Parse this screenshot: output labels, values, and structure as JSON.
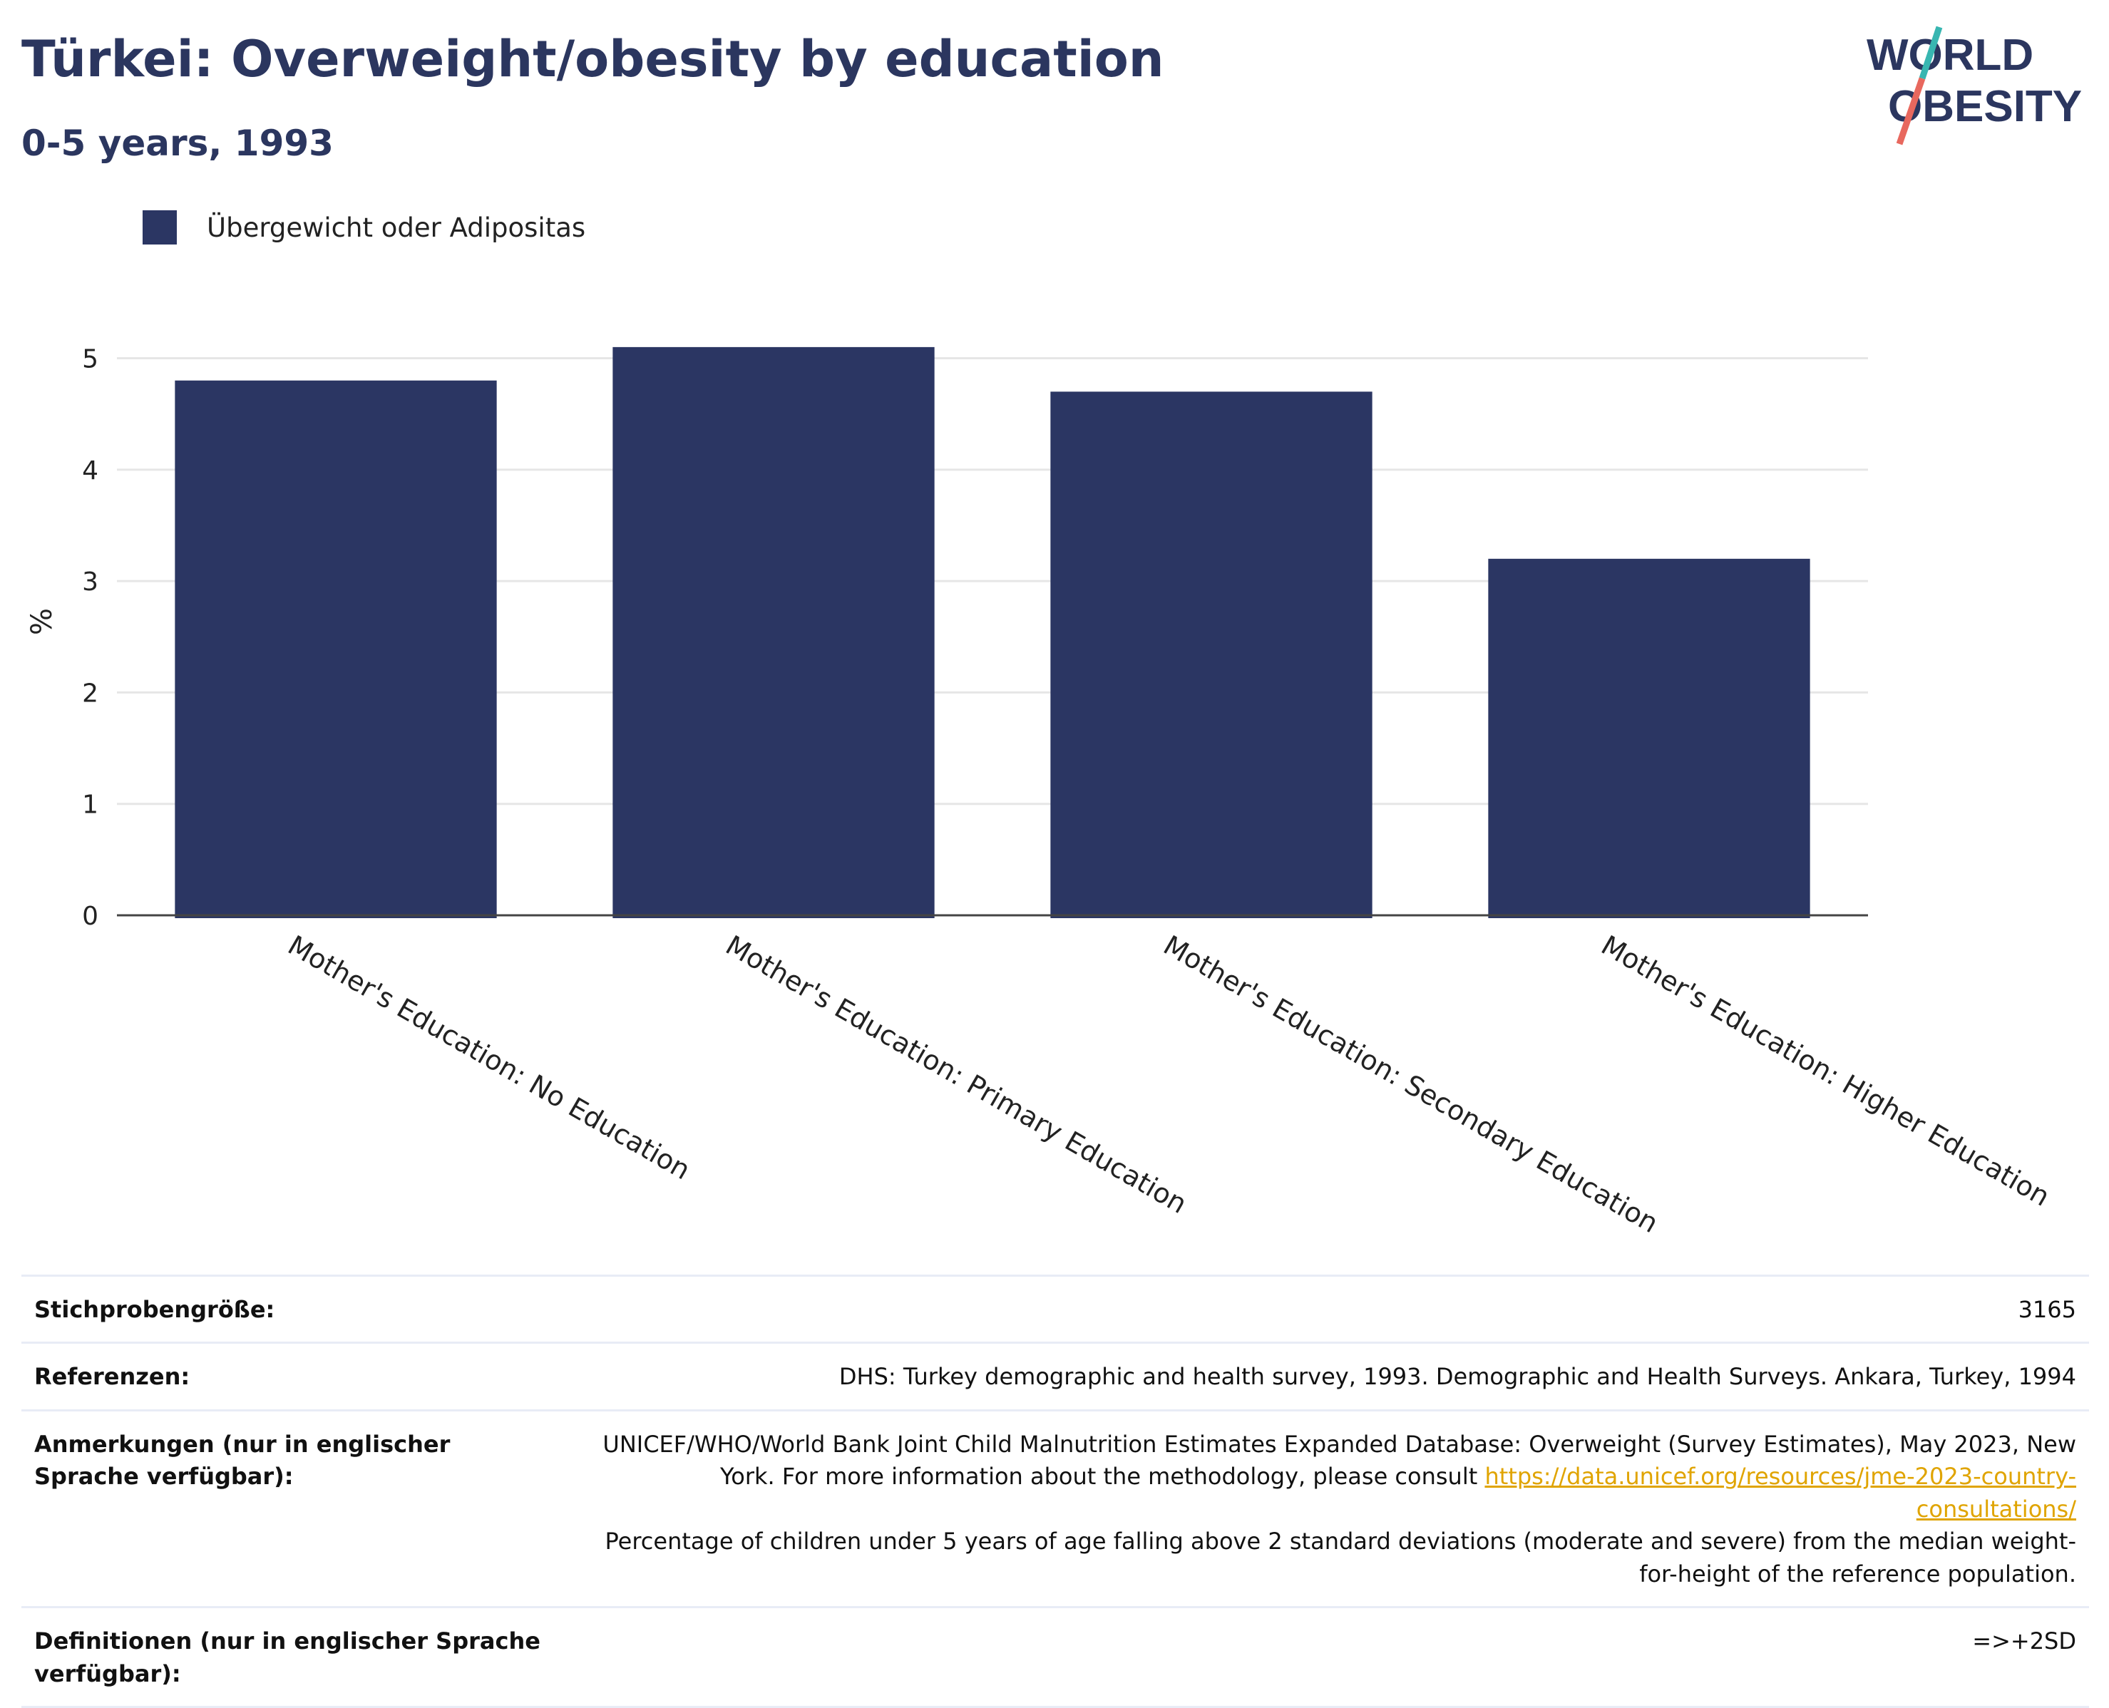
{
  "header": {
    "title": "Türkei: Overweight/obesity by education",
    "subtitle": "0-5 years, 1993"
  },
  "logo": {
    "line1": "WORLD",
    "line2": "OBESITY",
    "colors": [
      "#2b365f",
      "#38b6b1",
      "#e8685e"
    ]
  },
  "legend": {
    "label": "Übergewicht oder Adipositas"
  },
  "colors": {
    "bar": "#2b3663",
    "title": "#2b365f",
    "link": "#e0a400"
  },
  "chart_data": {
    "type": "bar",
    "categories": [
      "Mother's Education: No Education",
      "Mother's Education: Primary Education",
      "Mother's Education: Secondary Education",
      "Mother's Education: Higher Education"
    ],
    "series": [
      {
        "name": "Übergewicht oder Adipositas",
        "values": [
          4.8,
          5.1,
          4.7,
          3.2
        ]
      }
    ],
    "ylabel": "%",
    "ylim": [
      0,
      5.4
    ],
    "yticks": [
      0,
      1,
      2,
      3,
      4,
      5
    ],
    "grid": true
  },
  "info": {
    "sample_label": "Stichprobengröße:",
    "sample_value": "3165",
    "refs_label": "Referenzen:",
    "refs_value": "DHS: Turkey demographic and health survey, 1993. Demographic and Health Surveys. Ankara, Turkey, 1994",
    "notes_label": "Anmerkungen (nur in englischer Sprache verfügbar):",
    "notes_text1": "UNICEF/WHO/World Bank Joint Child Malnutrition Estimates Expanded Database: Overweight (Survey Estimates), May 2023, New York. For more information about the methodology, please consult",
    "notes_link": "https://data.unicef.org/resources/jme-2023-country-consultations/",
    "notes_text2": "Percentage of children under 5 years of age falling above 2 standard deviations (moderate and severe) from the median weight-for-height of the reference population.",
    "defs_label": "Definitionen (nur in englischer Sprache verfügbar):",
    "defs_value": "=>+2SD"
  }
}
